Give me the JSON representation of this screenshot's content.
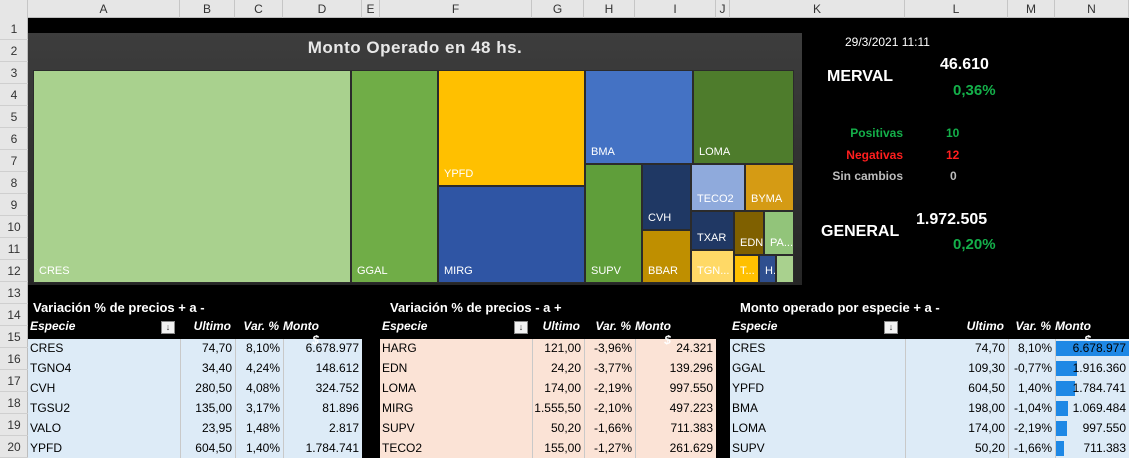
{
  "columns": [
    "A",
    "B",
    "C",
    "D",
    "E",
    "F",
    "G",
    "H",
    "I",
    "J",
    "K",
    "L",
    "M",
    "N"
  ],
  "rows": [
    "1",
    "2",
    "3",
    "4",
    "5",
    "6",
    "7",
    "8",
    "9",
    "10",
    "11",
    "12",
    "13",
    "14",
    "15",
    "16",
    "17",
    "18",
    "19",
    "20"
  ],
  "chart": {
    "title": "Monto Operado en 48 hs.",
    "tiles": [
      {
        "label": "CRES",
        "color": "#a9d18e"
      },
      {
        "label": "GGAL",
        "color": "#70ad47"
      },
      {
        "label": "YPFD",
        "color": "#ffc000"
      },
      {
        "label": "MIRG",
        "color": "#2f55a4"
      },
      {
        "label": "BMA",
        "color": "#4472c4"
      },
      {
        "label": "LOMA",
        "color": "#4e7c2c"
      },
      {
        "label": "SUPV",
        "color": "#5f9e3a"
      },
      {
        "label": "CVH",
        "color": "#1f3864"
      },
      {
        "label": "BBAR",
        "color": "#bf8f00"
      },
      {
        "label": "TECO2",
        "color": "#8faadc"
      },
      {
        "label": "BYMA",
        "color": "#d59b14"
      },
      {
        "label": "TXAR",
        "color": "#203864"
      },
      {
        "label": "EDN",
        "color": "#7f6000"
      },
      {
        "label": "PA...",
        "color": "#92c47a"
      },
      {
        "label": "TGN...",
        "color": "#ffd966"
      },
      {
        "label": "T...",
        "color": "#ffc000"
      },
      {
        "label": "H...",
        "color": "#2f4f8f"
      },
      {
        "label": "",
        "color": "#a9d18e"
      }
    ]
  },
  "datetime": "29/3/2021 11:11",
  "merval": {
    "label": "MERVAL",
    "value": "46.610",
    "change": "0,36%"
  },
  "stats": [
    {
      "label": "Positivas",
      "value": "10",
      "color": "grn"
    },
    {
      "label": "Negativas",
      "value": "12",
      "color": "red"
    },
    {
      "label": "Sin cambios",
      "value": "0",
      "color": "gry"
    }
  ],
  "general": {
    "label": "GENERAL",
    "value": "1.972.505",
    "change": "0,20%"
  },
  "table_up": {
    "title": "Variación % de precios + a -",
    "headers": [
      "Especie",
      "Ultimo",
      "Var. %",
      "Monto $"
    ],
    "rows": [
      [
        "CRES",
        "74,70",
        "8,10%",
        "6.678.977"
      ],
      [
        "TGNO4",
        "34,40",
        "4,24%",
        "148.612"
      ],
      [
        "CVH",
        "280,50",
        "4,08%",
        "324.752"
      ],
      [
        "TGSU2",
        "135,00",
        "3,17%",
        "81.896"
      ],
      [
        "VALO",
        "23,95",
        "1,48%",
        "2.817"
      ],
      [
        "YPFD",
        "604,50",
        "1,40%",
        "1.784.741"
      ]
    ]
  },
  "table_down": {
    "title": "Variación % de precios - a +",
    "headers": [
      "Especie",
      "Ultimo",
      "Var. %",
      "Monto $"
    ],
    "rows": [
      [
        "HARG",
        "121,00",
        "-3,96%",
        "24.321"
      ],
      [
        "EDN",
        "24,20",
        "-3,77%",
        "139.296"
      ],
      [
        "LOMA",
        "174,00",
        "-2,19%",
        "997.550"
      ],
      [
        "MIRG",
        "1.555,50",
        "-2,10%",
        "497.223"
      ],
      [
        "SUPV",
        "50,20",
        "-1,66%",
        "711.383"
      ],
      [
        "TECO2",
        "155,00",
        "-1,27%",
        "261.629"
      ]
    ]
  },
  "table_monto": {
    "title": "Monto operado por especie + a -",
    "headers": [
      "Especie",
      "Ultimo",
      "Var. %",
      "Monto $"
    ],
    "rows": [
      [
        "CRES",
        "74,70",
        "8,10%",
        "6.678.977"
      ],
      [
        "GGAL",
        "109,30",
        "-0,77%",
        "1.916.360"
      ],
      [
        "YPFD",
        "604,50",
        "1,40%",
        "1.784.741"
      ],
      [
        "BMA",
        "198,00",
        "-1,04%",
        "1.069.484"
      ],
      [
        "LOMA",
        "174,00",
        "-2,19%",
        "997.550"
      ],
      [
        "SUPV",
        "50,20",
        "-1,66%",
        "711.383"
      ]
    ],
    "bar_fraction": [
      1.0,
      0.287,
      0.267,
      0.16,
      0.149,
      0.107
    ]
  }
}
